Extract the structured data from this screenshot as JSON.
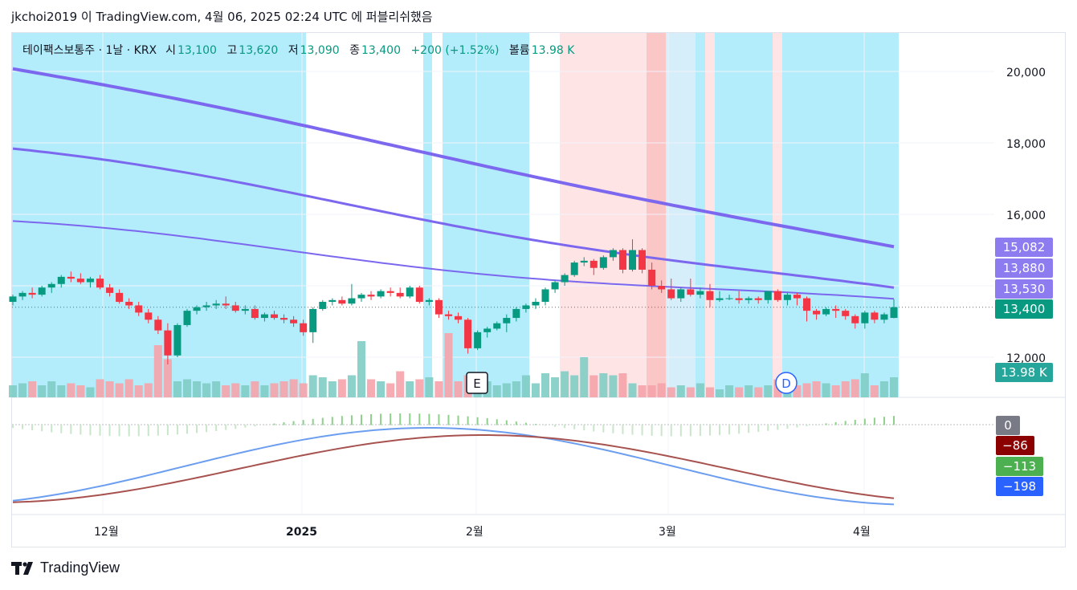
{
  "caption": "jkchoi2019 이 TradingView.com, 4월 06, 2025 02:24 UTC 에 퍼블리쉬했음",
  "legend": {
    "symbol": "테이팩스보통주 · 1날 · KRX",
    "open_label": "시",
    "open": "13,100",
    "high_label": "고",
    "high": "13,620",
    "low_label": "저",
    "low": "13,090",
    "close_label": "종",
    "close": "13,400",
    "change": "+200 (+1.52%)",
    "volume_label": "볼륨",
    "volume": "13.98 K"
  },
  "price_axis": [
    "20,000",
    "18,000",
    "16,000",
    "12,000"
  ],
  "price_labels": {
    "ma_long": "15,082",
    "ma_mid": "13,880",
    "ma_short": "13,530",
    "last": "13,400",
    "volume": "13.98 K"
  },
  "macd_labels": {
    "zero": "0",
    "signal": "−86",
    "hist": "−113",
    "macd": "−198",
    "hidden_axis": "0"
  },
  "time_axis": [
    "12월",
    "2025",
    "2월",
    "3월",
    "4월"
  ],
  "events": {
    "earnings": "E",
    "dividend": "D"
  },
  "footer": {
    "brand": "TradingView"
  },
  "colors": {
    "up": "#089981",
    "down": "#f23645",
    "ma": "#7b68ee",
    "bg_cyan": "#b3ecfa",
    "bg_pink": "#ffe4e6",
    "bg_red": "#fbc6c6",
    "bg_lightblue": "#d6eef9",
    "macd_line": "#6c9ef0",
    "signal_line": "#a7524f",
    "hist_pos": "#8fd18c"
  },
  "chart_data": {
    "type": "candlestick",
    "price_range": [
      11000,
      21000
    ],
    "candles_ohlc": [
      [
        13550,
        13750,
        13450,
        13700
      ],
      [
        13700,
        13850,
        13600,
        13800
      ],
      [
        13800,
        13950,
        13650,
        13750
      ],
      [
        13750,
        14000,
        13700,
        13950
      ],
      [
        13950,
        14100,
        13800,
        14050
      ],
      [
        14050,
        14300,
        13950,
        14250
      ],
      [
        14250,
        14400,
        14100,
        14200
      ],
      [
        14200,
        14350,
        14050,
        14100
      ],
      [
        14100,
        14250,
        13950,
        14200
      ],
      [
        14200,
        14300,
        13900,
        13950
      ],
      [
        13950,
        14050,
        13700,
        13800
      ],
      [
        13800,
        13900,
        13500,
        13550
      ],
      [
        13550,
        13650,
        13350,
        13450
      ],
      [
        13450,
        13550,
        13150,
        13250
      ],
      [
        13250,
        13350,
        12950,
        13050
      ],
      [
        13050,
        13150,
        12650,
        12750
      ],
      [
        12750,
        12950,
        11800,
        12050
      ],
      [
        12050,
        12950,
        12000,
        12900
      ],
      [
        12900,
        13350,
        12850,
        13300
      ],
      [
        13300,
        13450,
        13200,
        13400
      ],
      [
        13400,
        13550,
        13300,
        13450
      ],
      [
        13450,
        13600,
        13350,
        13500
      ],
      [
        13500,
        13700,
        13350,
        13450
      ],
      [
        13450,
        13550,
        13250,
        13300
      ],
      [
        13300,
        13450,
        13200,
        13350
      ],
      [
        13350,
        13450,
        13050,
        13100
      ],
      [
        13100,
        13250,
        13000,
        13200
      ],
      [
        13200,
        13300,
        13050,
        13100
      ],
      [
        13100,
        13200,
        12950,
        13050
      ],
      [
        13050,
        13150,
        12850,
        12950
      ],
      [
        12950,
        13050,
        12600,
        12700
      ],
      [
        12700,
        13400,
        12400,
        13350
      ],
      [
        13350,
        13600,
        13300,
        13550
      ],
      [
        13550,
        13650,
        13450,
        13600
      ],
      [
        13600,
        13700,
        13450,
        13500
      ],
      [
        13500,
        14050,
        13450,
        13650
      ],
      [
        13650,
        13800,
        13550,
        13750
      ],
      [
        13750,
        13850,
        13600,
        13700
      ],
      [
        13700,
        13900,
        13650,
        13850
      ],
      [
        13850,
        13950,
        13700,
        13800
      ],
      [
        13800,
        13950,
        13650,
        13700
      ],
      [
        13700,
        14000,
        13650,
        13950
      ],
      [
        13950,
        14000,
        13500,
        13550
      ],
      [
        13550,
        13650,
        13450,
        13600
      ],
      [
        13600,
        13650,
        13100,
        13200
      ],
      [
        13200,
        13300,
        13050,
        13150
      ],
      [
        13150,
        13250,
        12950,
        13050
      ],
      [
        13050,
        13100,
        12100,
        12250
      ],
      [
        12250,
        12750,
        12200,
        12700
      ],
      [
        12700,
        12850,
        12550,
        12800
      ],
      [
        12800,
        13000,
        12750,
        12950
      ],
      [
        12950,
        13200,
        12700,
        13100
      ],
      [
        13100,
        13400,
        13000,
        13350
      ],
      [
        13350,
        13500,
        13250,
        13450
      ],
      [
        13450,
        13650,
        13350,
        13550
      ],
      [
        13550,
        13950,
        13450,
        13900
      ],
      [
        13900,
        14150,
        13800,
        14100
      ],
      [
        14100,
        14350,
        14000,
        14300
      ],
      [
        14300,
        14700,
        14250,
        14650
      ],
      [
        14650,
        14800,
        14550,
        14700
      ],
      [
        14700,
        14750,
        14300,
        14500
      ],
      [
        14500,
        14850,
        14450,
        14800
      ],
      [
        14800,
        15050,
        14700,
        15000
      ],
      [
        15000,
        15050,
        14350,
        14450
      ],
      [
        14450,
        15300,
        14400,
        15000
      ],
      [
        15000,
        15050,
        14350,
        14450
      ],
      [
        14450,
        14650,
        13900,
        14000
      ],
      [
        14000,
        14150,
        13800,
        13900
      ],
      [
        13900,
        14200,
        13600,
        13650
      ],
      [
        13650,
        13950,
        13550,
        13900
      ],
      [
        13900,
        14200,
        13700,
        13750
      ],
      [
        13750,
        13950,
        13650,
        13850
      ],
      [
        13850,
        14050,
        13400,
        13600
      ],
      [
        13600,
        13850,
        13550,
        13650
      ],
      [
        13650,
        13750,
        13600,
        13650
      ],
      [
        13650,
        13850,
        13500,
        13600
      ],
      [
        13600,
        13700,
        13500,
        13650
      ],
      [
        13650,
        13700,
        13500,
        13600
      ],
      [
        13600,
        13750,
        13500,
        13850
      ],
      [
        13850,
        13900,
        13550,
        13600
      ],
      [
        13600,
        13800,
        13450,
        13750
      ],
      [
        13750,
        13800,
        13450,
        13650
      ],
      [
        13650,
        13700,
        13000,
        13300
      ],
      [
        13300,
        13350,
        13050,
        13200
      ],
      [
        13200,
        13400,
        13150,
        13350
      ],
      [
        13350,
        13450,
        13100,
        13300
      ],
      [
        13300,
        13350,
        13050,
        13150
      ],
      [
        13150,
        13200,
        12800,
        12950
      ],
      [
        12950,
        13300,
        12800,
        13250
      ],
      [
        13250,
        13300,
        12950,
        13050
      ],
      [
        13050,
        13250,
        12950,
        13200
      ],
      [
        13100,
        13620,
        13090,
        13400
      ]
    ],
    "volume_rel": [
      0.3,
      0.35,
      0.4,
      0.3,
      0.4,
      0.3,
      0.35,
      0.3,
      0.25,
      0.45,
      0.4,
      0.35,
      0.45,
      0.3,
      0.35,
      1.3,
      0.95,
      0.4,
      0.45,
      0.4,
      0.35,
      0.4,
      0.3,
      0.35,
      0.3,
      0.4,
      0.3,
      0.35,
      0.4,
      0.45,
      0.35,
      0.55,
      0.5,
      0.4,
      0.45,
      0.55,
      1.4,
      0.45,
      0.4,
      0.35,
      0.65,
      0.4,
      0.45,
      0.5,
      0.4,
      1.6,
      0.4,
      0.55,
      0.3,
      0.4,
      0.3,
      0.35,
      0.4,
      0.55,
      0.35,
      0.6,
      0.5,
      0.65,
      0.55,
      1.0,
      0.55,
      0.6,
      0.55,
      0.6,
      0.35,
      0.3,
      0.3,
      0.35,
      0.25,
      0.3,
      0.25,
      0.35,
      0.25,
      0.2,
      0.3,
      0.25,
      0.3,
      0.25,
      0.3,
      0.45,
      0.45,
      0.3,
      0.35,
      0.4,
      0.35,
      0.3,
      0.4,
      0.45,
      0.6,
      0.3,
      0.4,
      0.5
    ],
    "ma_long_end": 15082,
    "ma_mid_end": 13880,
    "ma_short_end": 13530,
    "last_price": 13400,
    "macd_last": -198,
    "signal_last": -86,
    "hist_last": -113
  }
}
